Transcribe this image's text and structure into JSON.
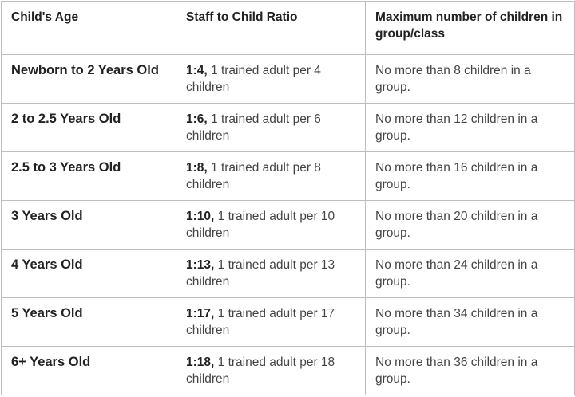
{
  "table": {
    "headers": [
      "Child's Age",
      "Staff to Child Ratio",
      "Maximum number of children in group/class"
    ],
    "rows": [
      {
        "age": "Newborn to 2 Years Old",
        "ratio": "1:4,",
        "ratio_text": "1 trained adult per 4 children",
        "max": "No more than 8 children in a group."
      },
      {
        "age": "2 to 2.5 Years Old",
        "ratio": "1:6,",
        "ratio_text": "1 trained adult per 6 children",
        "max": "No more than 12 children in a group."
      },
      {
        "age": "2.5 to 3 Years Old",
        "ratio": "1:8,",
        "ratio_text": "1 trained adult per 8 children",
        "max": "No more than 16 children in a group."
      },
      {
        "age": "3 Years Old",
        "ratio": "1:10,",
        "ratio_text": "1 trained adult per 10 children",
        "max": "No more than 20 children in a group."
      },
      {
        "age": "4 Years Old",
        "ratio": "1:13,",
        "ratio_text": "1 trained adult per 13 children",
        "max": "No more than 24 children in a group."
      },
      {
        "age": "5 Years Old",
        "ratio": "1:17,",
        "ratio_text": "1 trained adult per 17 children",
        "max": "No more than 34 children in a group."
      },
      {
        "age": "6+ Years Old",
        "ratio": "1:18,",
        "ratio_text": "1 trained adult per 18 children",
        "max": "No more than 36 children in a group."
      }
    ]
  }
}
